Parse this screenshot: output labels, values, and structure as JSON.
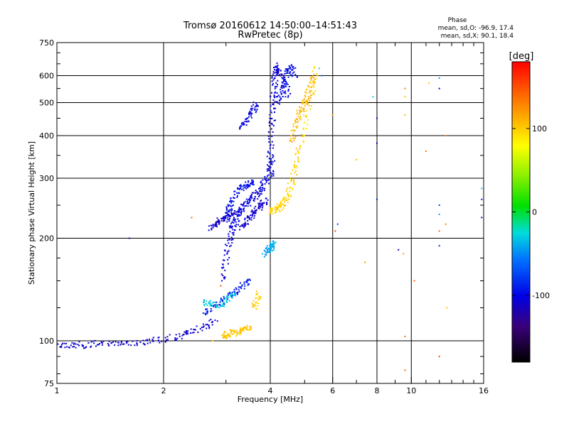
{
  "chart_data": {
    "type": "scatter",
    "title": "Tromsø 20160612 14:50:00–14:51:43",
    "subtitle": "RwPretec (8p)",
    "xlabel": "Frequency [MHz]",
    "ylabel": "Stationary phase Virtual Height [km]",
    "x_scale": "log",
    "y_scale": "log",
    "xlim": [
      1,
      16
    ],
    "ylim": [
      75,
      750
    ],
    "x_ticks": [
      1,
      2,
      4,
      6,
      8,
      10,
      16
    ],
    "x_tick_labels": [
      "1",
      "2",
      "4",
      "6",
      "8",
      "10",
      "16"
    ],
    "y_ticks": [
      75,
      100,
      200,
      300,
      400,
      500,
      600,
      750
    ],
    "y_tick_labels": [
      "75",
      "100",
      "200",
      "300",
      "400",
      "500",
      "600",
      "750"
    ],
    "grid": true,
    "phase_box": {
      "title": "Phase",
      "line_o": "mean, sd,O: -96.9, 17.4",
      "line_x": "mean, sd,X:  90.1, 18.4"
    },
    "colorbar": {
      "label": "[deg]",
      "range": [
        -180,
        180
      ],
      "ticks": [
        -100,
        0,
        100
      ],
      "tick_labels": [
        "-100",
        "0",
        "100"
      ]
    },
    "traces": [
      {
        "name": "low-E",
        "phase": -108,
        "x": [
          1.0,
          1.1,
          1.2,
          1.3,
          1.45,
          1.6,
          1.8,
          2.0,
          2.2,
          2.4,
          2.6,
          2.8
        ],
        "y": [
          97,
          97.5,
          97,
          98,
          98,
          99,
          99.5,
          101,
          103,
          106,
          110,
          114
        ]
      },
      {
        "name": "O-stack-lower",
        "phase": -92,
        "x": [
          2.6,
          2.75,
          2.9,
          3.05,
          3.2,
          3.35,
          3.5
        ],
        "y": [
          120,
          125,
          130,
          136,
          140,
          146,
          150
        ]
      },
      {
        "name": "O-bottomside-1",
        "phase": -104,
        "x": [
          2.95,
          3.0,
          3.05,
          3.1,
          3.15,
          3.2,
          3.25,
          3.3,
          3.4,
          3.5,
          3.6,
          3.7,
          3.8,
          3.9,
          4.0,
          4.05
        ],
        "y": [
          150,
          170,
          190,
          205,
          218,
          228,
          236,
          242,
          250,
          258,
          265,
          272,
          282,
          295,
          315,
          340
        ]
      },
      {
        "name": "O-bottomside-2",
        "phase": -110,
        "x": [
          3.3,
          3.4,
          3.5,
          3.6,
          3.7,
          3.8,
          3.9
        ],
        "y": [
          215,
          222,
          230,
          238,
          245,
          252,
          260
        ]
      },
      {
        "name": "O-band",
        "phase": -96,
        "x": [
          3.0,
          3.05,
          3.1,
          3.2,
          3.3,
          3.4,
          3.5,
          3.6
        ],
        "y": [
          225,
          240,
          255,
          270,
          280,
          286,
          290,
          292
        ]
      },
      {
        "name": "O-cusp",
        "phase": -105,
        "x": [
          4.0,
          4.0,
          4.02,
          4.05,
          4.08,
          4.1,
          4.12,
          4.15,
          4.2,
          4.3,
          4.4,
          4.5
        ],
        "y": [
          300,
          350,
          400,
          450,
          500,
          550,
          600,
          620,
          640,
          600,
          560,
          520
        ]
      },
      {
        "name": "O-top-cluster",
        "phase": -100,
        "x": [
          4.2,
          4.3,
          4.4,
          4.5,
          4.6,
          4.7
        ],
        "y": [
          500,
          540,
          580,
          620,
          640,
          600
        ]
      },
      {
        "name": "O-upper-arc",
        "phase": -104,
        "x": [
          3.3,
          3.4,
          3.5,
          3.6,
          3.7
        ],
        "y": [
          420,
          440,
          460,
          480,
          500
        ]
      },
      {
        "name": "O-mid-line",
        "phase": -110,
        "x": [
          2.7,
          2.8,
          2.9,
          3.0,
          3.1,
          3.2
        ],
        "y": [
          215,
          220,
          225,
          230,
          235,
          240
        ]
      },
      {
        "name": "X-E",
        "phase": 103,
        "x": [
          2.95,
          3.0,
          3.1,
          3.2,
          3.3,
          3.4,
          3.5
        ],
        "y": [
          103,
          104,
          105,
          106,
          107,
          108,
          109
        ]
      },
      {
        "name": "X-stack",
        "phase": 98,
        "x": [
          3.6,
          3.65,
          3.7
        ],
        "y": [
          125,
          130,
          138
        ]
      },
      {
        "name": "X-F",
        "phase": 97,
        "x": [
          4.0,
          4.1,
          4.2,
          4.3,
          4.4,
          4.5,
          4.6,
          4.7,
          4.8,
          5.0,
          5.2,
          5.4
        ],
        "y": [
          240,
          242,
          245,
          250,
          258,
          270,
          290,
          320,
          360,
          430,
          520,
          640
        ]
      },
      {
        "name": "X-F-outer",
        "phase": 108,
        "x": [
          4.6,
          4.7,
          4.8,
          4.9,
          5.0,
          5.1,
          5.2,
          5.3
        ],
        "y": [
          380,
          420,
          450,
          480,
          500,
          520,
          560,
          600
        ]
      },
      {
        "name": "mid-cluster-cyan",
        "phase": -40,
        "x": [
          3.9,
          3.95,
          4.0,
          4.05,
          4.1
        ],
        "y": [
          180,
          184,
          188,
          190,
          193
        ]
      },
      {
        "name": "low-cyan",
        "phase": -30,
        "x": [
          2.6,
          2.7,
          2.9,
          3.0,
          3.2
        ],
        "y": [
          130,
          128,
          126,
          132,
          138
        ]
      }
    ],
    "scattered_points": [
      {
        "x": 6.0,
        "y": 460,
        "phase": 120
      },
      {
        "x": 6.1,
        "y": 210,
        "phase": 150
      },
      {
        "x": 6.2,
        "y": 220,
        "phase": -80
      },
      {
        "x": 7.0,
        "y": 340,
        "phase": 100
      },
      {
        "x": 7.4,
        "y": 170,
        "phase": 120
      },
      {
        "x": 7.8,
        "y": 520,
        "phase": -40
      },
      {
        "x": 8.0,
        "y": 450,
        "phase": -90
      },
      {
        "x": 8.0,
        "y": 380,
        "phase": -100
      },
      {
        "x": 8.0,
        "y": 260,
        "phase": -80
      },
      {
        "x": 9.2,
        "y": 185,
        "phase": -100
      },
      {
        "x": 9.5,
        "y": 180,
        "phase": 120
      },
      {
        "x": 9.6,
        "y": 550,
        "phase": 120
      },
      {
        "x": 9.6,
        "y": 520,
        "phase": 110
      },
      {
        "x": 9.6,
        "y": 460,
        "phase": 120
      },
      {
        "x": 9.6,
        "y": 103,
        "phase": 130
      },
      {
        "x": 9.6,
        "y": 82,
        "phase": 130
      },
      {
        "x": 10.2,
        "y": 150,
        "phase": 150
      },
      {
        "x": 11.0,
        "y": 360,
        "phase": 130
      },
      {
        "x": 11.2,
        "y": 570,
        "phase": 100
      },
      {
        "x": 12.0,
        "y": 590,
        "phase": -40
      },
      {
        "x": 12.0,
        "y": 550,
        "phase": -90
      },
      {
        "x": 12.0,
        "y": 235,
        "phase": -40
      },
      {
        "x": 12.0,
        "y": 250,
        "phase": -80
      },
      {
        "x": 12.0,
        "y": 210,
        "phase": 150
      },
      {
        "x": 12.0,
        "y": 190,
        "phase": -80
      },
      {
        "x": 12.0,
        "y": 90,
        "phase": 150
      },
      {
        "x": 12.5,
        "y": 400,
        "phase": 130
      },
      {
        "x": 12.5,
        "y": 220,
        "phase": 120
      },
      {
        "x": 12.6,
        "y": 125,
        "phase": 110
      },
      {
        "x": 15.8,
        "y": 260,
        "phase": -90
      },
      {
        "x": 15.8,
        "y": 230,
        "phase": -100
      },
      {
        "x": 15.8,
        "y": 280,
        "phase": -40
      },
      {
        "x": 5.5,
        "y": 630,
        "phase": -30
      },
      {
        "x": 5.6,
        "y": 600,
        "phase": -60
      },
      {
        "x": 3.8,
        "y": 180,
        "phase": -40
      },
      {
        "x": 2.4,
        "y": 230,
        "phase": 150
      },
      {
        "x": 1.6,
        "y": 200,
        "phase": -100
      },
      {
        "x": 2.75,
        "y": 100,
        "phase": 100
      },
      {
        "x": 2.9,
        "y": 145,
        "phase": 150
      }
    ]
  }
}
